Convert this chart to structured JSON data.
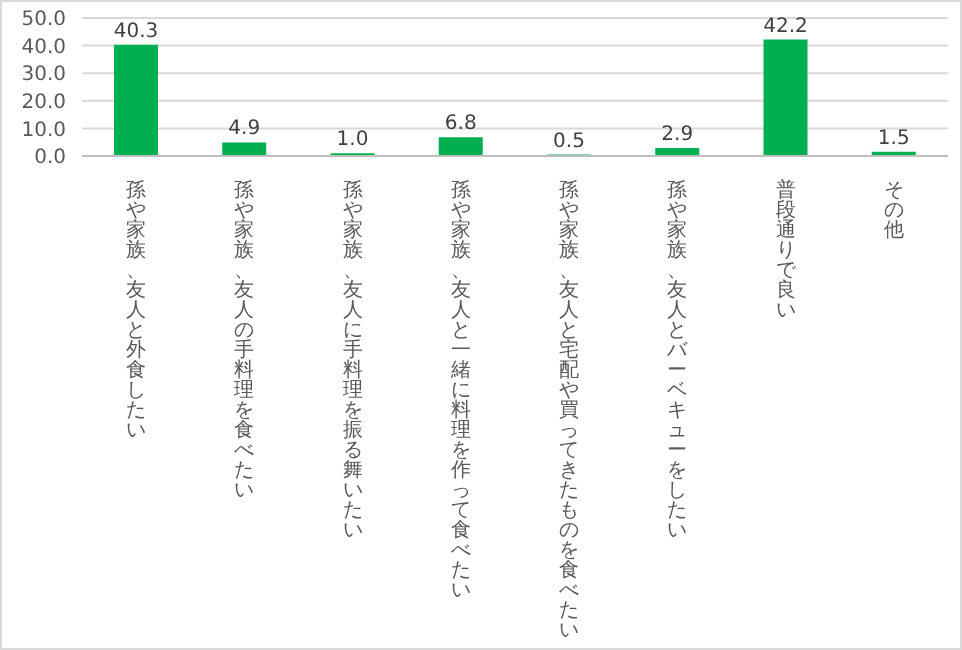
{
  "chart_data": {
    "type": "bar",
    "categories": [
      "孫や家族、友人と外食したい",
      "孫や家族、友人の手料理を食べたい",
      "孫や家族、友人に手料理を振る舞いたい",
      "孫や家族、友人と一緒に料理を作って食べたい",
      "孫や家族、友人と宅配や買ってきたものを食べたい",
      "孫や家族、友人とバーベキューをしたい",
      "普段通りで良い",
      "その他"
    ],
    "values": [
      40.3,
      4.9,
      1.0,
      6.8,
      0.5,
      2.9,
      42.2,
      1.5
    ],
    "value_labels": [
      "40.3",
      "4.9",
      "1.0",
      "6.8",
      "0.5",
      "2.9",
      "42.2",
      "1.5"
    ],
    "color": "#00b050",
    "ylim": [
      0,
      50
    ],
    "yticks": [
      {
        "value": 0,
        "label": "0.0"
      },
      {
        "value": 10,
        "label": "10.0"
      },
      {
        "value": 20,
        "label": "20.0"
      },
      {
        "value": 30,
        "label": "30.0"
      },
      {
        "value": 40,
        "label": "40.0"
      },
      {
        "value": 50,
        "label": "50.0"
      }
    ],
    "grid": "y"
  }
}
